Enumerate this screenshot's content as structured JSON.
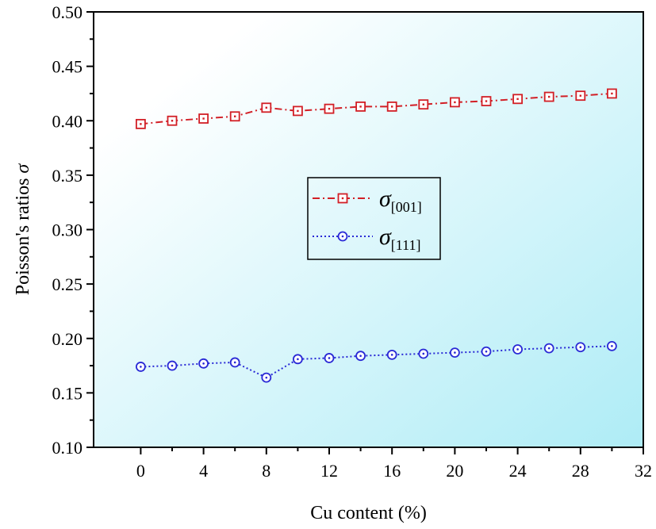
{
  "chart_data": {
    "type": "line",
    "title": "",
    "xlabel": "Cu content (%)",
    "ylabel": "Poisson's ratios σ",
    "xlim": [
      -3,
      32
    ],
    "ylim": [
      0.1,
      0.5
    ],
    "xticks": [
      0,
      4,
      8,
      12,
      16,
      20,
      24,
      28,
      32
    ],
    "yticks": [
      0.1,
      0.15,
      0.2,
      0.25,
      0.3,
      0.35,
      0.4,
      0.45,
      0.5
    ],
    "xtick_labels": [
      "0",
      "4",
      "8",
      "12",
      "16",
      "20",
      "24",
      "28",
      "32"
    ],
    "ytick_labels": [
      "0.10",
      "0.15",
      "0.20",
      "0.25",
      "0.30",
      "0.35",
      "0.40",
      "0.45",
      "0.50"
    ],
    "grid": false,
    "legend_position": "center",
    "background_gradient": [
      "#ffffff",
      "#aeecf6"
    ],
    "x": [
      0,
      2,
      4,
      6,
      8,
      10,
      12,
      14,
      16,
      18,
      20,
      22,
      24,
      26,
      28,
      30
    ],
    "series": [
      {
        "name": "σ",
        "subscript": "[001]",
        "color": "#d21f26",
        "marker": "square",
        "line_style": "dash-dot",
        "values": [
          0.397,
          0.4,
          0.402,
          0.404,
          0.412,
          0.409,
          0.411,
          0.413,
          0.413,
          0.415,
          0.417,
          0.418,
          0.42,
          0.422,
          0.423,
          0.425
        ]
      },
      {
        "name": "σ",
        "subscript": "[111]",
        "color": "#2a2ad6",
        "marker": "circle",
        "line_style": "dotted",
        "values": [
          0.174,
          0.175,
          0.177,
          0.178,
          0.164,
          0.181,
          0.182,
          0.184,
          0.185,
          0.186,
          0.187,
          0.188,
          0.19,
          0.191,
          0.192,
          0.193
        ]
      }
    ]
  }
}
